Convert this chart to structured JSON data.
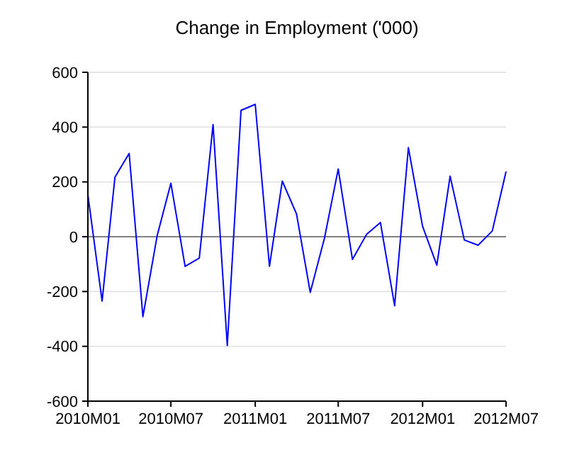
{
  "chart_data": {
    "type": "line",
    "title": "Change in Employment ('000)",
    "x": [
      "2010-01",
      "2010-02",
      "2010-03",
      "2010-04",
      "2010-05",
      "2010-06",
      "2010-07",
      "2010-08",
      "2010-09",
      "2010-10",
      "2010-11",
      "2010-12",
      "2011-01",
      "2011-02",
      "2011-03",
      "2011-04",
      "2011-05",
      "2011-06",
      "2011-07",
      "2011-08",
      "2011-09",
      "2011-10",
      "2011-11",
      "2011-12",
      "2012-01",
      "2012-02",
      "2012-03",
      "2012-04",
      "2012-05",
      "2012-06",
      "2012-07"
    ],
    "series": [
      {
        "color": "#0000ff",
        "values": [
          153,
          -235,
          217,
          304,
          -292,
          3,
          195,
          -108,
          -78,
          409,
          -397,
          461,
          483,
          -108,
          203,
          83,
          -203,
          -5,
          247,
          -83,
          9,
          52,
          -252,
          325,
          38,
          -104,
          221,
          -12,
          -31,
          21,
          238
        ]
      }
    ],
    "xlim": [
      "2010-01",
      "2012-07"
    ],
    "xticks": [
      {
        "value": "2010-01",
        "label": "2010M01"
      },
      {
        "value": "2010-07",
        "label": "2010M07"
      },
      {
        "value": "2011-01",
        "label": "2011M01"
      },
      {
        "value": "2011-07",
        "label": "2011M07"
      },
      {
        "value": "2012-01",
        "label": "2012M01"
      },
      {
        "value": "2012-07",
        "label": "2012M07"
      }
    ],
    "ylim": [
      -600,
      600
    ],
    "yticks": [
      -600,
      -400,
      -200,
      0,
      200,
      400,
      600
    ],
    "grid": "y",
    "ref_lines": [
      {
        "axis": "y",
        "value": 0,
        "color": "#808080"
      }
    ]
  }
}
